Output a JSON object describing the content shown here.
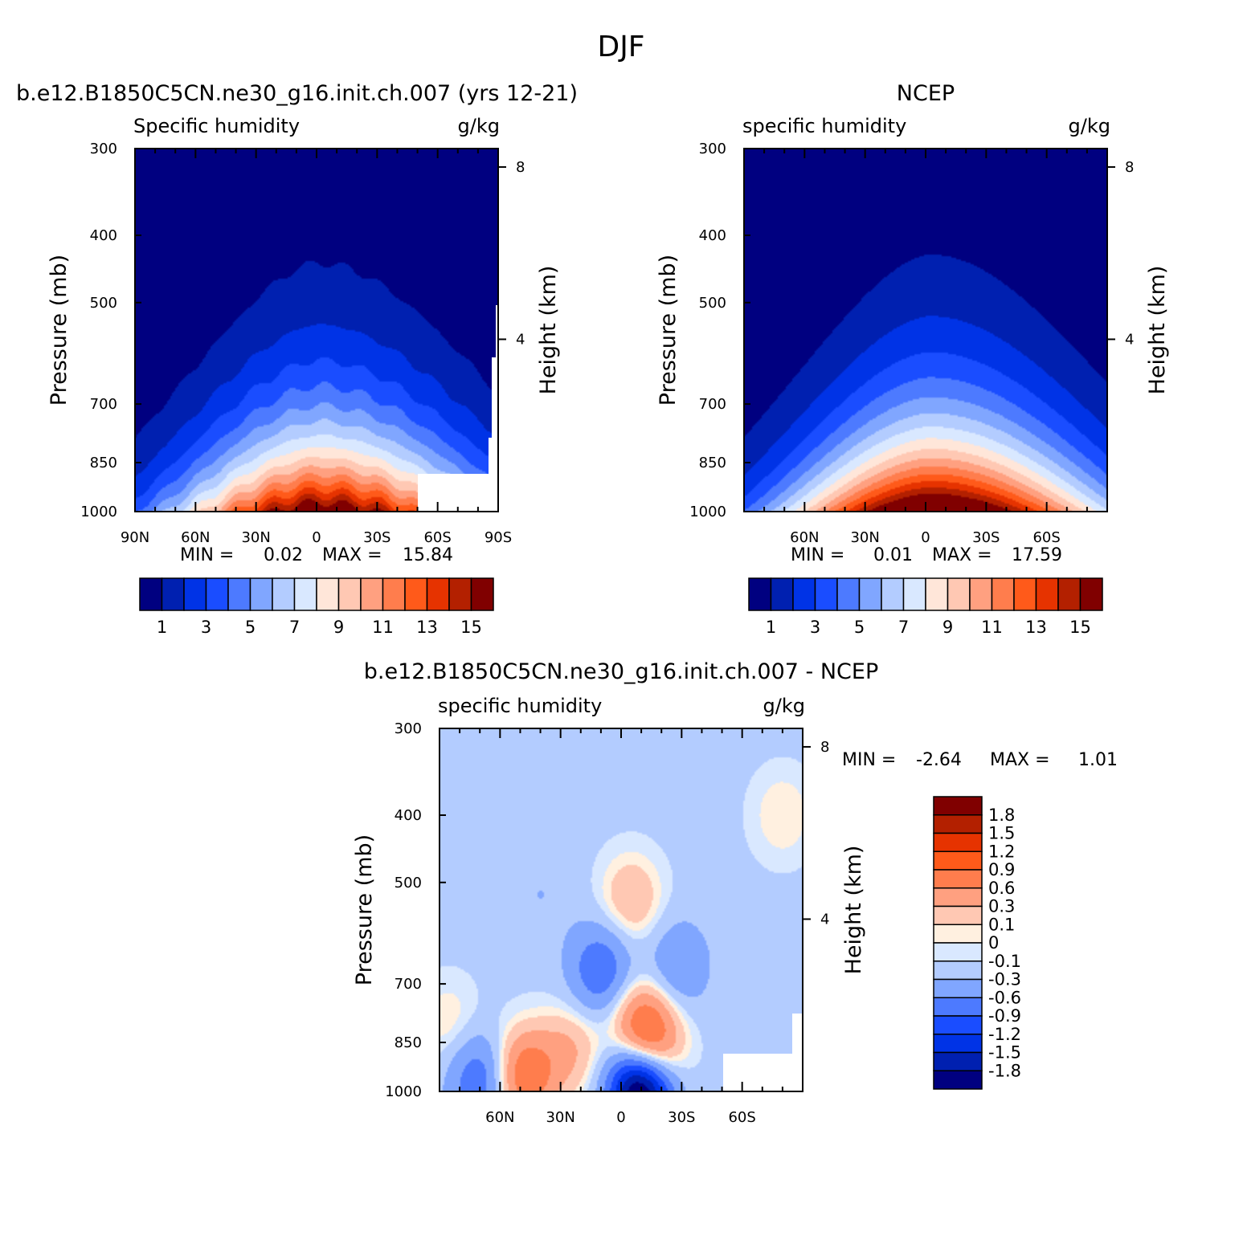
{
  "suptitle": "DJF",
  "pressure_ticks": [
    300,
    400,
    500,
    700,
    850,
    1000
  ],
  "height_ticks": [
    8,
    4
  ],
  "chart_data": [
    {
      "type": "heatmap",
      "id": "model",
      "title": "b.e12.B1850C5CN.ne30_g16.init.ch.007 (yrs 12-21)",
      "left_label": "Specific humidity",
      "units": "g/kg",
      "ylabel": "Pressure (mb)",
      "ylabel_right": "Height (km)",
      "x_ticks": [
        "90N",
        "60N",
        "30N",
        "0",
        "30S",
        "60S",
        "90S"
      ],
      "xlim": [
        90,
        -90
      ],
      "ylim": [
        1000,
        300
      ],
      "yscale": "log",
      "min_label": "MIN =",
      "min_value": "0.02",
      "max_label": "MAX =",
      "max_value": "15.84",
      "peak": 15.84,
      "peak_lat": -3,
      "colorbar": {
        "colors": [
          "#000080",
          "#0020b0",
          "#0033e6",
          "#1a4dff",
          "#4d7aff",
          "#80a6ff",
          "#b3ccff",
          "#d9e8ff",
          "#ffe6d9",
          "#ffc8b3",
          "#ffa080",
          "#ff7d4d",
          "#ff5a1a",
          "#e63300",
          "#b32000",
          "#800000"
        ],
        "labels": [
          "1",
          "3",
          "5",
          "7",
          "9",
          "11",
          "13",
          "15"
        ]
      }
    },
    {
      "type": "heatmap",
      "id": "obs",
      "title": "NCEP",
      "left_label": "specific humidity",
      "units": "g/kg",
      "ylabel": "Pressure (mb)",
      "ylabel_right": "Height (km)",
      "x_ticks": [
        "60N",
        "30N",
        "0",
        "30S",
        "60S"
      ],
      "xlim": [
        90,
        -90
      ],
      "ylim": [
        1000,
        300
      ],
      "yscale": "log",
      "min_label": "MIN =",
      "min_value": "0.01",
      "max_label": "MAX =",
      "max_value": "17.59",
      "peak": 17.59,
      "peak_lat": -5,
      "colorbar": {
        "colors": [
          "#000080",
          "#0020b0",
          "#0033e6",
          "#1a4dff",
          "#4d7aff",
          "#80a6ff",
          "#b3ccff",
          "#d9e8ff",
          "#ffe6d9",
          "#ffc8b3",
          "#ffa080",
          "#ff7d4d",
          "#ff5a1a",
          "#e63300",
          "#b32000",
          "#800000"
        ],
        "labels": [
          "1",
          "3",
          "5",
          "7",
          "9",
          "11",
          "13",
          "15"
        ]
      }
    },
    {
      "type": "heatmap",
      "id": "diff",
      "title": "b.e12.B1850C5CN.ne30_g16.init.ch.007 - NCEP",
      "left_label": "specific humidity",
      "units": "g/kg",
      "ylabel": "Pressure (mb)",
      "ylabel_right": "Height (km)",
      "x_ticks": [
        "60N",
        "30N",
        "0",
        "30S",
        "60S"
      ],
      "xlim": [
        90,
        -90
      ],
      "ylim": [
        1000,
        300
      ],
      "yscale": "log",
      "min_label": "MIN =",
      "min_value": "-2.64",
      "max_label": "MAX =",
      "max_value": "1.01",
      "colorbar": {
        "colors": [
          "#000080",
          "#0020b0",
          "#0033e6",
          "#1a4dff",
          "#4d7aff",
          "#80a6ff",
          "#b3ccff",
          "#d9e8ff",
          "#fff0e0",
          "#ffc8b3",
          "#ffa080",
          "#ff7d4d",
          "#ff5a1a",
          "#e63300",
          "#b32000",
          "#800000"
        ],
        "labels": [
          "1.8",
          "1.5",
          "1.2",
          "0.9",
          "0.6",
          "0.3",
          "0.1",
          "0",
          "-0.1",
          "-0.3",
          "-0.6",
          "-0.9",
          "-1.2",
          "-1.5",
          "-1.8"
        ]
      },
      "features": [
        {
          "lat": 40,
          "p": 520,
          "value": -0.3
        },
        {
          "lat": 10,
          "p": 670,
          "value": -0.9
        },
        {
          "lat": -28,
          "p": 660,
          "value": -0.6
        },
        {
          "lat": -5,
          "p": 530,
          "value": 0.3
        },
        {
          "lat": -10,
          "p": 800,
          "value": 0.6
        },
        {
          "lat": -15,
          "p": 880,
          "value": 0.9
        },
        {
          "lat": 25,
          "p": 870,
          "value": 0.3
        },
        {
          "lat": 48,
          "p": 950,
          "value": 0.9
        },
        {
          "lat": -10,
          "p": 990,
          "value": -2.6
        },
        {
          "lat": 70,
          "p": 960,
          "value": -0.9
        },
        {
          "lat": 85,
          "p": 800,
          "value": 0.1
        },
        {
          "lat": -80,
          "p": 400,
          "value": 0.1
        }
      ]
    }
  ]
}
